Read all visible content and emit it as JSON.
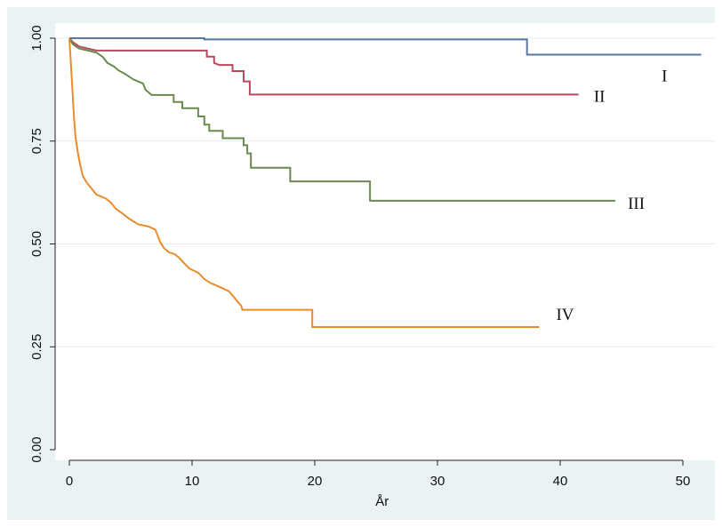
{
  "chart_data": {
    "type": "line",
    "step": true,
    "title": "",
    "xlabel": "År",
    "ylabel": "",
    "xlim": [
      0,
      52
    ],
    "ylim": [
      0,
      1
    ],
    "x_ticks": [
      0,
      10,
      20,
      30,
      40,
      50
    ],
    "x_tick_labels": [
      "0",
      "10",
      "20",
      "30",
      "40",
      "50"
    ],
    "y_ticks": [
      0,
      0.25,
      0.5,
      0.75,
      1
    ],
    "y_tick_labels": [
      "0.00",
      "0.25",
      "0.50",
      "0.75",
      "1.00"
    ],
    "grid": "horizontal",
    "legend": "none",
    "series": [
      {
        "name": "I",
        "color": "#5a78a0",
        "label_at": [
          48.5,
          0.905
        ],
        "points": [
          [
            0,
            1
          ],
          [
            11,
            1
          ],
          [
            11,
            0.997
          ],
          [
            37.3,
            0.997
          ],
          [
            37.3,
            0.96
          ],
          [
            51.5,
            0.96
          ]
        ]
      },
      {
        "name": "II",
        "color": "#b84a5e",
        "label_at": [
          43.2,
          0.855
        ],
        "points": [
          [
            0,
            1
          ],
          [
            0.3,
            0.99
          ],
          [
            0.8,
            0.98
          ],
          [
            1.5,
            0.975
          ],
          [
            2.2,
            0.97
          ],
          [
            11.2,
            0.97
          ],
          [
            11.2,
            0.955
          ],
          [
            11.8,
            0.955
          ],
          [
            11.8,
            0.94
          ],
          [
            12.2,
            0.935
          ],
          [
            13.3,
            0.935
          ],
          [
            13.3,
            0.92
          ],
          [
            14.2,
            0.92
          ],
          [
            14.2,
            0.895
          ],
          [
            14.7,
            0.895
          ],
          [
            14.7,
            0.863
          ],
          [
            41.5,
            0.863
          ]
        ]
      },
      {
        "name": "III",
        "color": "#6a8a4f",
        "label_at": [
          46.2,
          0.595
        ],
        "points": [
          [
            0,
            1
          ],
          [
            0.3,
            0.985
          ],
          [
            0.8,
            0.975
          ],
          [
            1.5,
            0.97
          ],
          [
            2.2,
            0.965
          ],
          [
            2.7,
            0.955
          ],
          [
            3.1,
            0.94
          ],
          [
            3.6,
            0.932
          ],
          [
            4,
            0.922
          ],
          [
            4.6,
            0.912
          ],
          [
            5.2,
            0.9
          ],
          [
            6,
            0.89
          ],
          [
            6.2,
            0.875
          ],
          [
            6.7,
            0.862
          ],
          [
            8.5,
            0.862
          ],
          [
            8.5,
            0.845
          ],
          [
            9.2,
            0.845
          ],
          [
            9.2,
            0.83
          ],
          [
            10.5,
            0.83
          ],
          [
            10.5,
            0.81
          ],
          [
            11,
            0.81
          ],
          [
            11,
            0.79
          ],
          [
            11.4,
            0.79
          ],
          [
            11.4,
            0.775
          ],
          [
            12.5,
            0.775
          ],
          [
            12.5,
            0.757
          ],
          [
            14.2,
            0.757
          ],
          [
            14.2,
            0.74
          ],
          [
            14.5,
            0.74
          ],
          [
            14.5,
            0.72
          ],
          [
            14.8,
            0.72
          ],
          [
            14.8,
            0.685
          ],
          [
            18,
            0.685
          ],
          [
            18,
            0.652
          ],
          [
            24.5,
            0.652
          ],
          [
            24.5,
            0.605
          ],
          [
            44.5,
            0.605
          ]
        ]
      },
      {
        "name": "IV",
        "color": "#e88c2c",
        "label_at": [
          40.4,
          0.325
        ],
        "points": [
          [
            0,
            1
          ],
          [
            0.1,
            0.95
          ],
          [
            0.2,
            0.9
          ],
          [
            0.3,
            0.85
          ],
          [
            0.4,
            0.8
          ],
          [
            0.5,
            0.76
          ],
          [
            0.7,
            0.72
          ],
          [
            0.9,
            0.69
          ],
          [
            1.1,
            0.665
          ],
          [
            1.4,
            0.65
          ],
          [
            1.8,
            0.635
          ],
          [
            2.2,
            0.62
          ],
          [
            3,
            0.61
          ],
          [
            3.4,
            0.6
          ],
          [
            3.8,
            0.585
          ],
          [
            4.3,
            0.575
          ],
          [
            4.7,
            0.565
          ],
          [
            5.2,
            0.555
          ],
          [
            5.6,
            0.548
          ],
          [
            6.5,
            0.542
          ],
          [
            7,
            0.535
          ],
          [
            7.2,
            0.52
          ],
          [
            7.4,
            0.505
          ],
          [
            7.7,
            0.49
          ],
          [
            8.1,
            0.48
          ],
          [
            8.6,
            0.475
          ],
          [
            9,
            0.465
          ],
          [
            9.3,
            0.455
          ],
          [
            9.8,
            0.44
          ],
          [
            10.5,
            0.43
          ],
          [
            11,
            0.415
          ],
          [
            11.5,
            0.405
          ],
          [
            12.3,
            0.395
          ],
          [
            13,
            0.385
          ],
          [
            13.3,
            0.375
          ],
          [
            13.7,
            0.36
          ],
          [
            14,
            0.35
          ],
          [
            14.1,
            0.34
          ],
          [
            19.8,
            0.34
          ],
          [
            19.8,
            0.298
          ],
          [
            38.3,
            0.298
          ]
        ]
      }
    ]
  }
}
